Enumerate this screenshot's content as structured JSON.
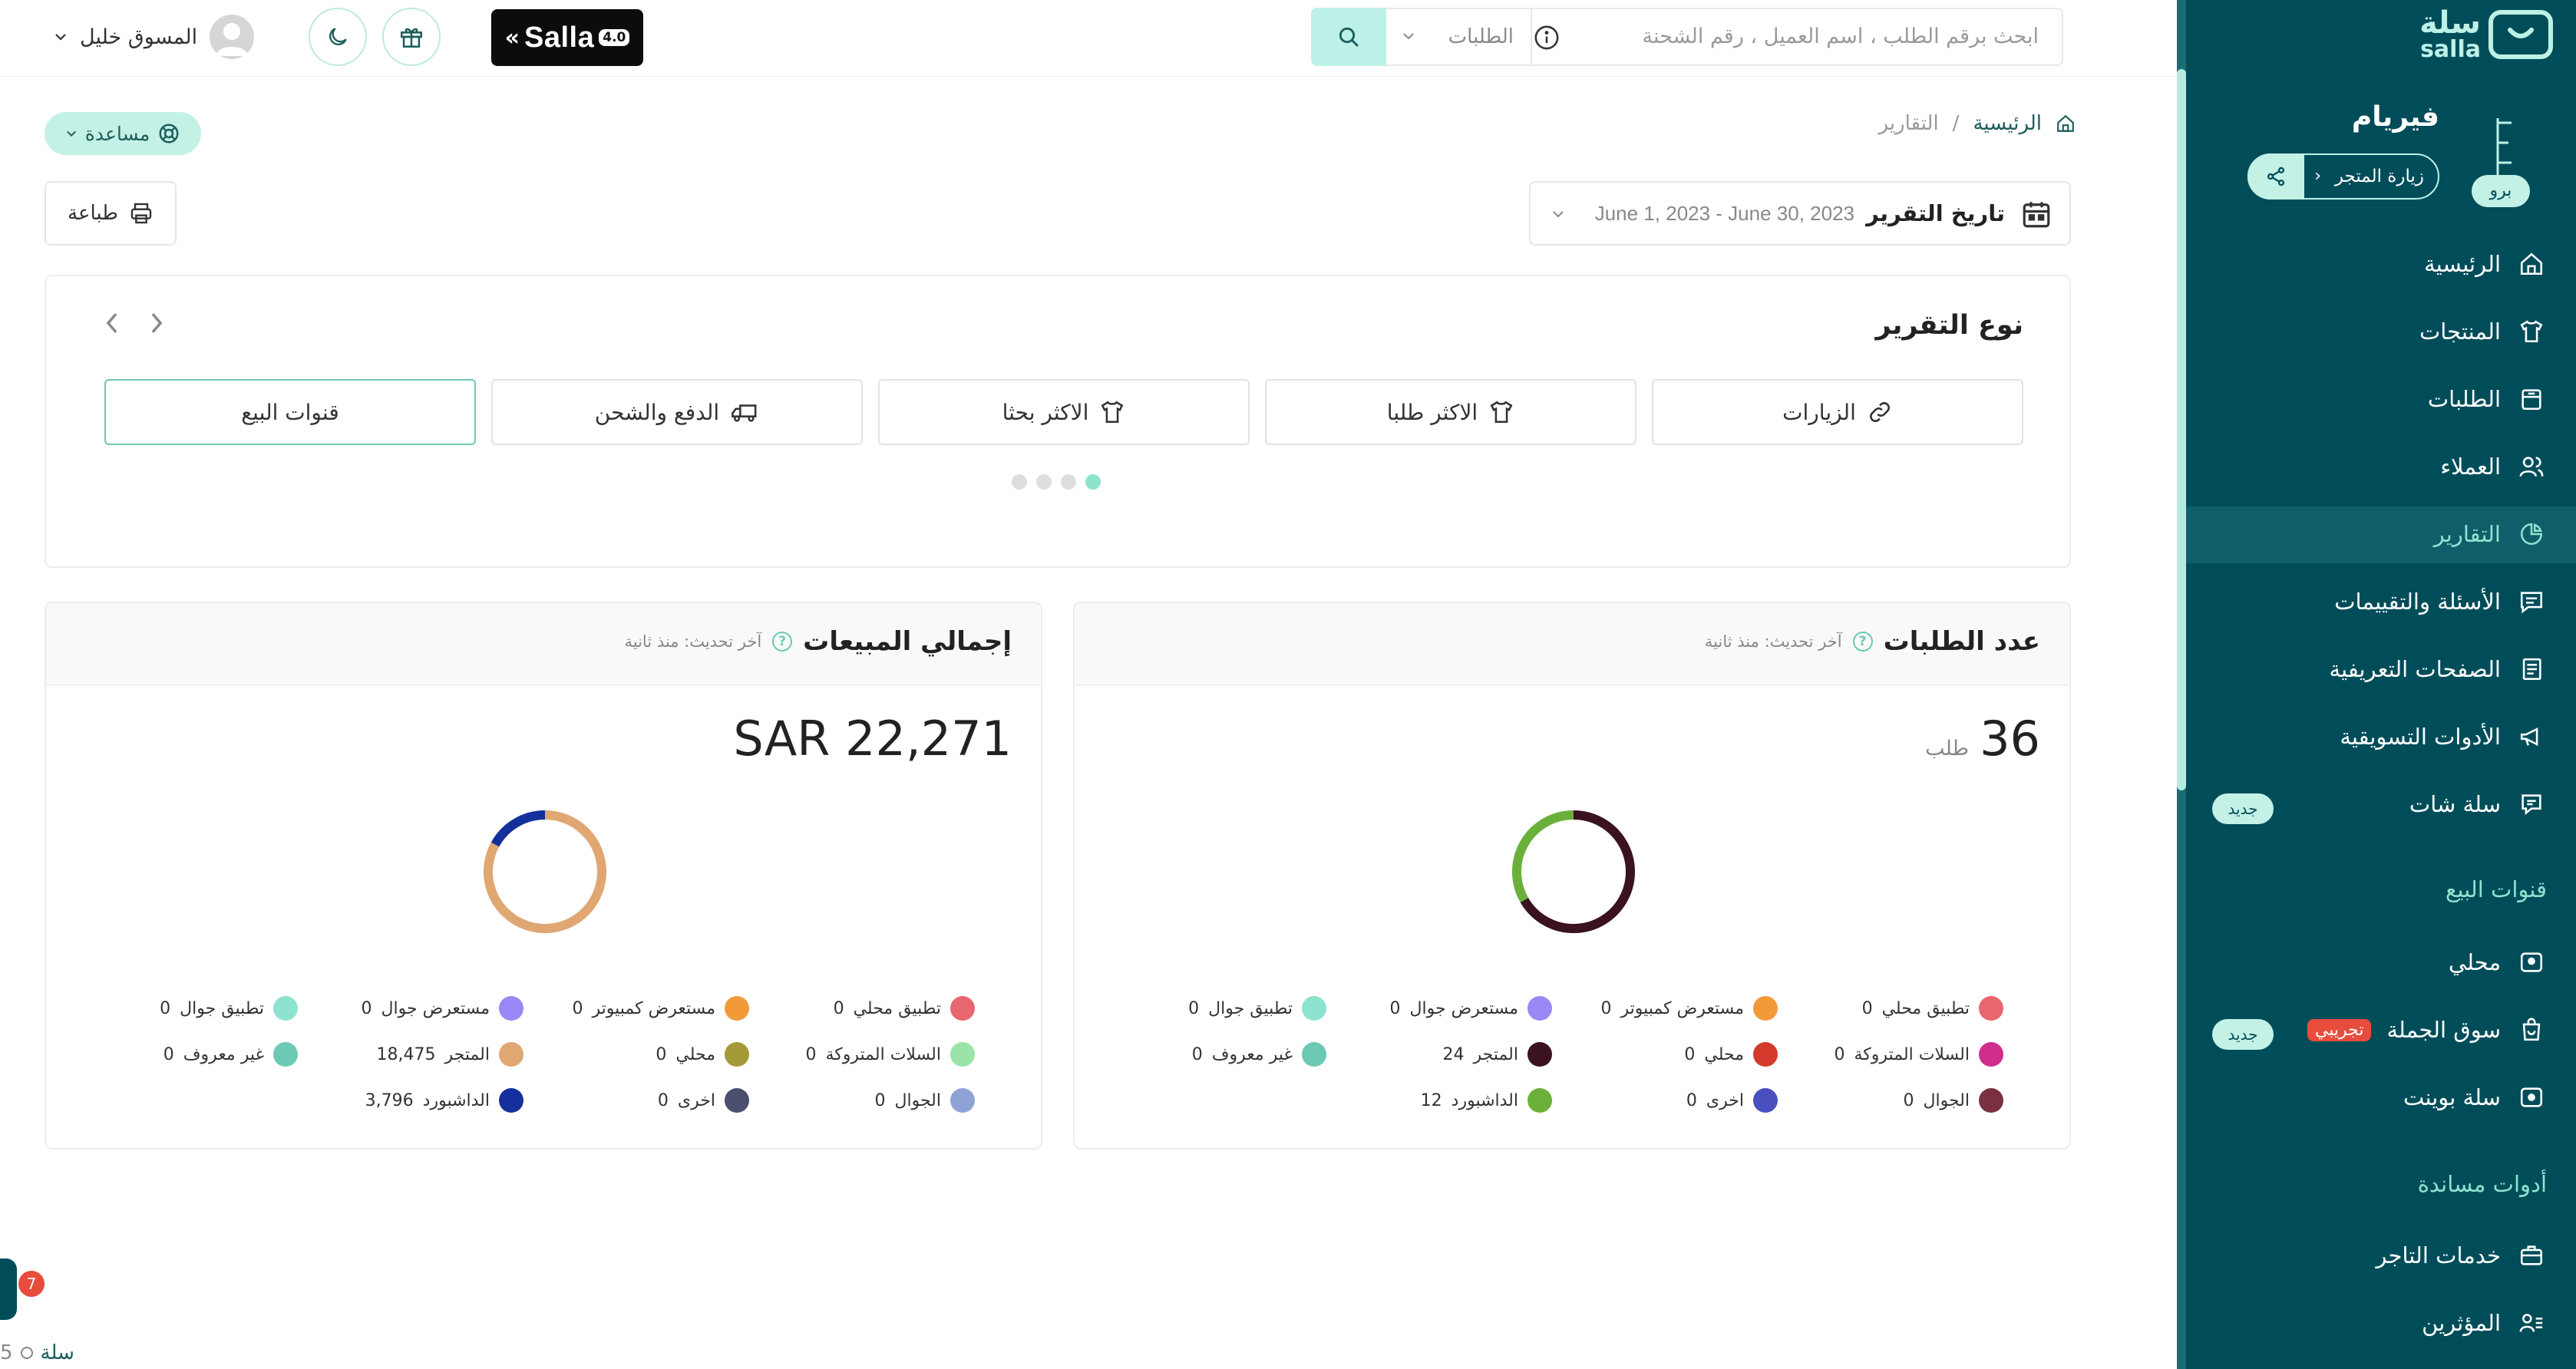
{
  "topbar": {
    "search_placeholder": "ابحث برقم الطلب ، اسم العميل ، رقم الشحنة",
    "search_type": "الطلبات",
    "brand": "Salla",
    "brand_version": "4.0",
    "user_name": "المسوق خليل"
  },
  "breadcrumb": {
    "home": "الرئيسية",
    "current": "التقارير",
    "separator": "/"
  },
  "help_label": "مساعدة",
  "print_label": "طباعة",
  "report_date": {
    "label": "تاريخ التقرير",
    "value": "June 1, 2023 - June 30, 2023"
  },
  "report_type": {
    "title": "نوع التقرير",
    "tabs": [
      {
        "label": "الزيارات",
        "icon": "link-icon"
      },
      {
        "label": "الاكثر طلبا",
        "icon": "shirt-icon"
      },
      {
        "label": "الاكثر بحثا",
        "icon": "shirt-icon"
      },
      {
        "label": "الدفع والشحن",
        "icon": "truck-icon"
      },
      {
        "label": "قنوات البيع",
        "icon": "",
        "active": true
      }
    ],
    "dots_total": 4,
    "dots_active": 0
  },
  "orders_card": {
    "title": "عدد الطلبات",
    "updated": "آخر تحديث: منذ ثانية",
    "value": "36",
    "unit": "طلب",
    "legend": [
      {
        "label": "تطبيق محلي",
        "value": "0",
        "color": "#e8676f"
      },
      {
        "label": "مستعرض كمبيوتر",
        "value": "0",
        "color": "#f29a38"
      },
      {
        "label": "مستعرض جوال",
        "value": "0",
        "color": "#9b87f5"
      },
      {
        "label": "تطبيق جوال",
        "value": "0",
        "color": "#8ee3cf"
      },
      {
        "label": "السلات المتروكة",
        "value": "0",
        "color": "#d02e8e"
      },
      {
        "label": "محلي",
        "value": "0",
        "color": "#d33a2c"
      },
      {
        "label": "المتجر",
        "value": "24",
        "color": "#3a1222"
      },
      {
        "label": "غير معروف",
        "value": "0",
        "color": "#6cc9b4"
      },
      {
        "label": "الجوال",
        "value": "0",
        "color": "#7a3040"
      },
      {
        "label": "اخرى",
        "value": "0",
        "color": "#4a4fbf"
      },
      {
        "label": "الداشبورد",
        "value": "12",
        "color": "#6ab03a"
      }
    ]
  },
  "sales_card": {
    "title": "إجمالي المبيعات",
    "updated": "آخر تحديث: منذ ثانية",
    "value": "SAR 22,271",
    "legend": [
      {
        "label": "تطبيق محلي",
        "value": "0",
        "color": "#e8676f"
      },
      {
        "label": "مستعرض كمبيوتر",
        "value": "0",
        "color": "#f29a38"
      },
      {
        "label": "مستعرض جوال",
        "value": "0",
        "color": "#9b87f5"
      },
      {
        "label": "تطبيق جوال",
        "value": "0",
        "color": "#8ee3cf"
      },
      {
        "label": "السلات المتروكة",
        "value": "0",
        "color": "#9be3a8"
      },
      {
        "label": "محلي",
        "value": "0",
        "color": "#a59a3a"
      },
      {
        "label": "المتجر",
        "value": "18,475",
        "color": "#e0a773"
      },
      {
        "label": "غير معروف",
        "value": "0",
        "color": "#6cc9b4"
      },
      {
        "label": "الجوال",
        "value": "0",
        "color": "#8fa2d6"
      },
      {
        "label": "اخرى",
        "value": "0",
        "color": "#4a4f6e"
      },
      {
        "label": "الداشبورد",
        "value": "3,796",
        "color": "#15309c"
      }
    ]
  },
  "sidebar": {
    "logo_ar": "سلة",
    "logo_en": "salla",
    "store_name": "فيريام",
    "plan_badge": "برو",
    "visit_store": "زيارة المتجر",
    "items": [
      {
        "label": "الرئيسية",
        "icon": "home-icon"
      },
      {
        "label": "المنتجات",
        "icon": "shirt-icon"
      },
      {
        "label": "الطلبات",
        "icon": "orders-icon"
      },
      {
        "label": "العملاء",
        "icon": "users-icon"
      },
      {
        "label": "التقارير",
        "icon": "pie-chart-icon",
        "active": true
      },
      {
        "label": "الأسئلة والتقييمات",
        "icon": "comment-icon"
      },
      {
        "label": "الصفحات التعريفية",
        "icon": "pages-icon"
      },
      {
        "label": "الأدوات التسويقية",
        "icon": "megaphone-icon"
      },
      {
        "label": "سلة شات",
        "icon": "chat-icon",
        "badge": "جديد"
      }
    ],
    "section_sales_channels": "قنوات البيع",
    "channels": [
      {
        "label": "محلي",
        "icon": "store-icon"
      },
      {
        "label": "سوق الجملة",
        "icon": "bag-icon",
        "tag": "تجريبي",
        "badge": "جديد"
      },
      {
        "label": "سلة بوينت",
        "icon": "pos-icon"
      }
    ],
    "section_support_tools": "أدوات مساندة",
    "tools": [
      {
        "label": "خدمات التاجر",
        "icon": "briefcase-icon"
      },
      {
        "label": "المؤثرين",
        "icon": "influencers-icon"
      }
    ]
  },
  "chat_widget": {
    "count": "7"
  },
  "footer": {
    "brand": "سلة",
    "version": "5"
  }
}
